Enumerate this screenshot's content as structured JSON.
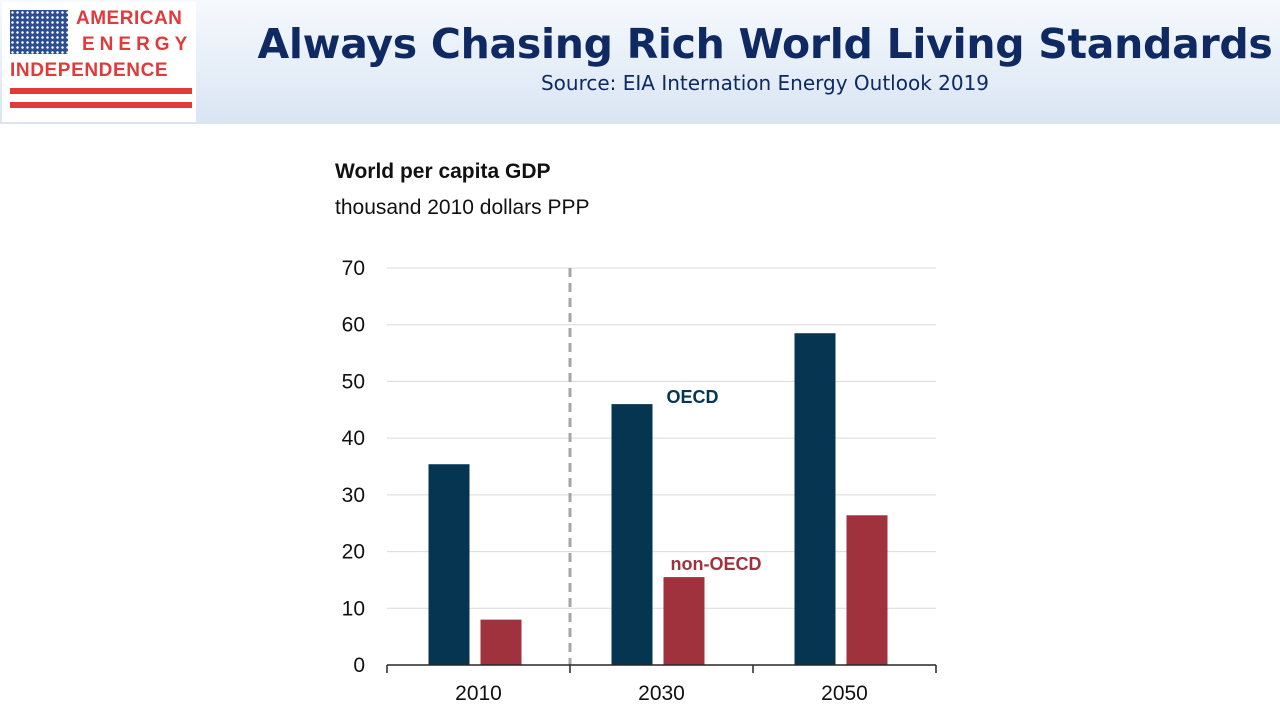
{
  "header": {
    "title": "Always Chasing Rich World Living Standards",
    "subtitle": "Source: EIA Internation Energy Outlook 2019"
  },
  "logo": {
    "line1": "AMERICAN",
    "line2": "ENERGY",
    "line3": "INDEPENDENCE",
    "icon": "us-flag-icon",
    "color": "#e03a3a"
  },
  "chart_data": {
    "type": "bar",
    "title": "World per capita GDP",
    "subtitle": "thousand 2010 dollars PPP",
    "xlabel": "",
    "ylabel": "",
    "categories": [
      "2010",
      "2030",
      "2050"
    ],
    "series": [
      {
        "name": "OECD",
        "color": "#063552",
        "values": [
          35.4,
          46.0,
          58.5
        ]
      },
      {
        "name": "non-OECD",
        "color": "#a0323e",
        "values": [
          8.0,
          15.5,
          26.4
        ]
      }
    ],
    "ylim": [
      0,
      70
    ],
    "yticks": [
      0,
      10,
      20,
      30,
      40,
      50,
      60,
      70
    ],
    "grid": true,
    "projection_divider_after": "2010"
  }
}
